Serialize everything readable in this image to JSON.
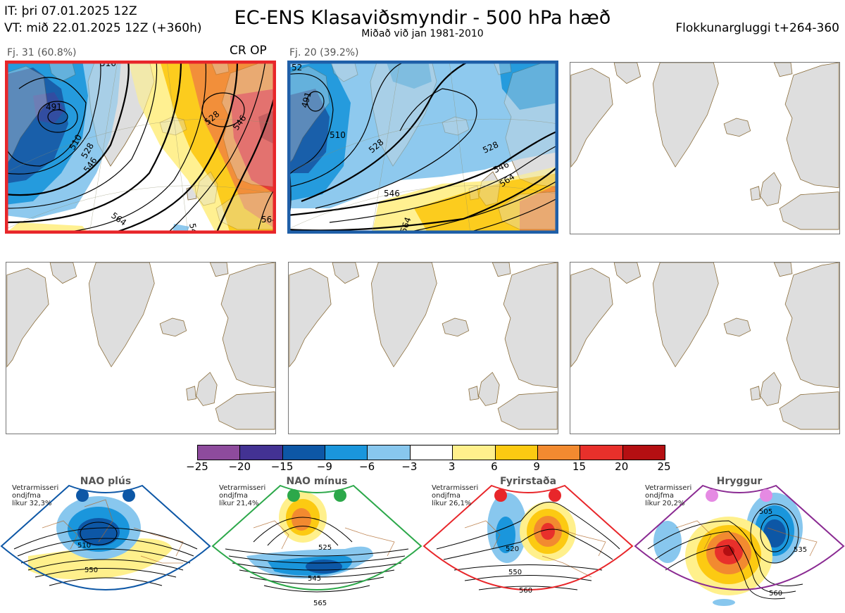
{
  "header": {
    "init_time": "IT: þri 07.01.2025 12Z",
    "valid_time": "VT: mið 22.01.2025 12Z  (+360h)",
    "title": "EC-ENS Klasaviðsmyndir - 500 hPa hæð",
    "subtitle": "Miðað við jan 1981-2010",
    "window": "Flokkunargluggi t+264-360"
  },
  "clusters": [
    {
      "label": "Fj. 31 (60.8%)",
      "tag": "CR OP",
      "border_color": "#e8262a",
      "contour_labels": [
        "516",
        "491",
        "510",
        "528",
        "546",
        "564",
        "528",
        "546",
        "564",
        "54"
      ]
    },
    {
      "label": "Fj. 20 (39.2%)",
      "tag": "",
      "border_color": "#1f5fa8",
      "contour_labels": [
        "52",
        "491",
        "510",
        "528",
        "528",
        "546",
        "546",
        "564",
        "564"
      ]
    }
  ],
  "empty_panels": 4,
  "colorbar": {
    "ticks": [
      "−25",
      "−20",
      "−15",
      "−9",
      "−6",
      "−3",
      "3",
      "6",
      "9",
      "15",
      "20",
      "25"
    ],
    "colors": [
      "#8e4b9d",
      "#433293",
      "#0d57a6",
      "#1a96dc",
      "#88c7ee",
      "#ffffff",
      "#fff08c",
      "#fcca12",
      "#f28a30",
      "#e8302b",
      "#b40f12"
    ]
  },
  "regimes": [
    {
      "name": "NAO plús",
      "season": "Vetrarmisseri",
      "anomaly": "ondjfma",
      "probability": "líkur 32,3%",
      "color": "#0d57a6",
      "labels": [
        "510",
        "550"
      ]
    },
    {
      "name": "NAO mínus",
      "season": "Vetrarmisseri",
      "anomaly": "ondjfma",
      "probability": "líkur 21,4%",
      "color": "#2ca84a",
      "labels": [
        "525",
        "545",
        "565"
      ]
    },
    {
      "name": "Fyrirstaða",
      "season": "Vetrarmisseri",
      "anomaly": "ondjfma",
      "probability": "líkur 26,1%",
      "color": "#e8262a",
      "labels": [
        "520",
        "550",
        "560"
      ]
    },
    {
      "name": "Hryggur",
      "season": "Vetrarmisseri",
      "anomaly": "ondjfma",
      "probability": "líkur 20,2%",
      "color": "#8a2a92",
      "labels": [
        "505",
        "535",
        "560"
      ]
    }
  ],
  "chart_data": {
    "type": "heatmap",
    "title": "EC-ENS Klasaviðsmyndir - 500 hPa hæð",
    "subtitle": "Miðað við jan 1981-2010",
    "colorbar_levels": [
      -25,
      -20,
      -15,
      -9,
      -6,
      -3,
      3,
      6,
      9,
      15,
      20,
      25
    ],
    "clusters": [
      {
        "name": "Fj. 31",
        "members": 31,
        "percent": 60.8,
        "tag": "CR OP"
      },
      {
        "name": "Fj. 20",
        "members": 20,
        "percent": 39.2
      }
    ],
    "regimes": [
      {
        "name": "NAO plús",
        "probability": 32.3
      },
      {
        "name": "NAO mínus",
        "probability": 21.4
      },
      {
        "name": "Fyrirstaða",
        "probability": 26.1
      },
      {
        "name": "Hryggur",
        "probability": 20.2
      }
    ]
  }
}
